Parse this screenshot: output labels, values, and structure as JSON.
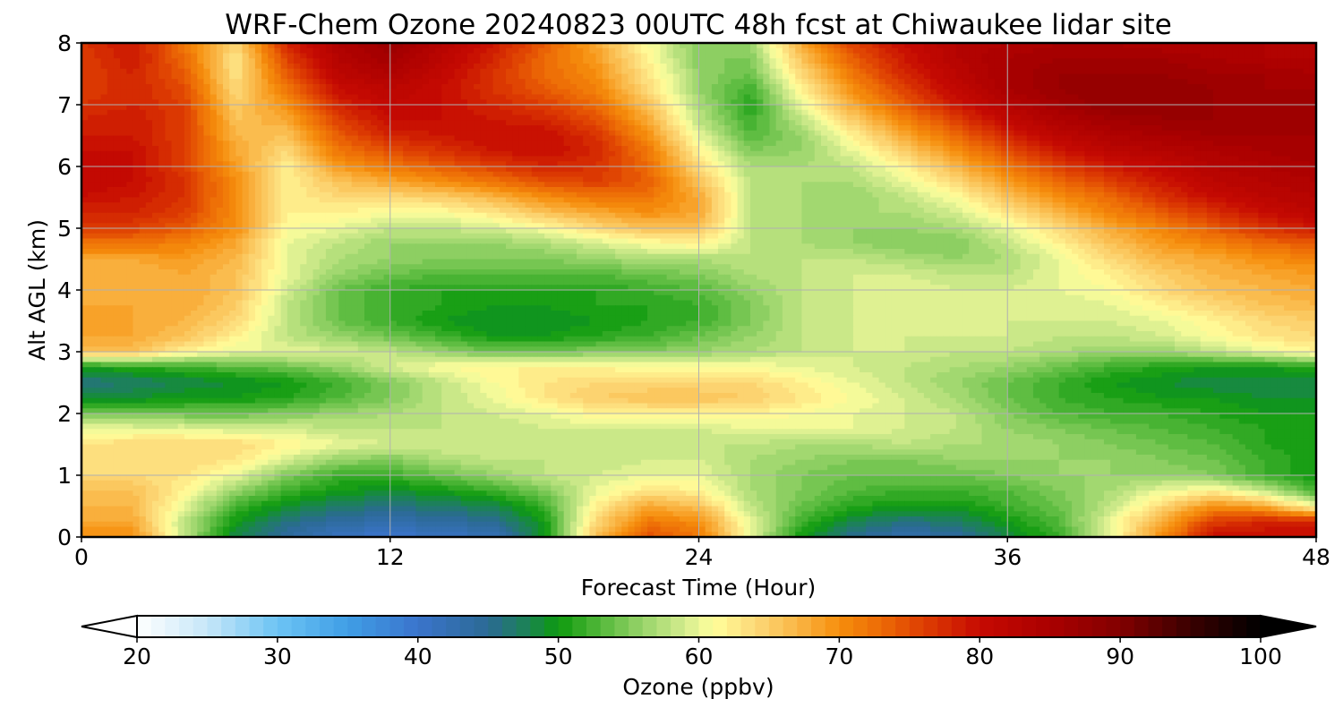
{
  "chart_data": {
    "type": "heatmap",
    "title": "WRF-Chem Ozone  20240823 00UTC 48h fcst at Chiwaukee lidar site",
    "xlabel": "Forecast Time (Hour)",
    "ylabel": "Alt AGL (km)",
    "xlim": [
      0,
      48
    ],
    "ylim": [
      0,
      8
    ],
    "x_ticks": [
      0,
      12,
      24,
      36,
      48
    ],
    "y_ticks": [
      0,
      1,
      2,
      3,
      4,
      5,
      6,
      7,
      8
    ],
    "grid": true,
    "x": [
      0,
      2,
      4,
      6,
      8,
      10,
      12,
      14,
      16,
      18,
      20,
      22,
      24,
      26,
      28,
      30,
      32,
      34,
      36,
      38,
      40,
      42,
      44,
      46,
      48
    ],
    "y": [
      0,
      0.25,
      0.5,
      0.75,
      1.0,
      1.25,
      1.5,
      1.75,
      2.0,
      2.25,
      2.5,
      2.75,
      3.0,
      3.25,
      3.5,
      3.75,
      4.0,
      4.25,
      4.5,
      4.75,
      5.0,
      5.25,
      5.5,
      5.75,
      6.0,
      6.25,
      6.5,
      6.75,
      7.0,
      7.25,
      7.5,
      7.75,
      8.0
    ],
    "z": [
      [
        70,
        70,
        58,
        48,
        44,
        41,
        40,
        41,
        42,
        50,
        66,
        75,
        72,
        60,
        50,
        45,
        43,
        44,
        48,
        52,
        60,
        70,
        80,
        80,
        80
      ],
      [
        68,
        68,
        58,
        50,
        46,
        44,
        43,
        44,
        45,
        50,
        64,
        72,
        70,
        60,
        52,
        48,
        46,
        47,
        50,
        53,
        60,
        68,
        76,
        78,
        78
      ],
      [
        67,
        67,
        60,
        52,
        49,
        47,
        46,
        47,
        48,
        52,
        62,
        68,
        66,
        58,
        54,
        51,
        50,
        50,
        52,
        54,
        58,
        64,
        70,
        68,
        60
      ],
      [
        66,
        66,
        62,
        56,
        52,
        50,
        49,
        50,
        52,
        55,
        60,
        63,
        62,
        57,
        55,
        53,
        52,
        52,
        53,
        55,
        57,
        60,
        62,
        58,
        52
      ],
      [
        64,
        64,
        63,
        60,
        55,
        52,
        52,
        54,
        56,
        58,
        59,
        60,
        60,
        57,
        55,
        54,
        54,
        54,
        55,
        56,
        56,
        56,
        55,
        52,
        50
      ],
      [
        63,
        63,
        64,
        63,
        59,
        56,
        55,
        57,
        58,
        58,
        58,
        59,
        59,
        57,
        56,
        55,
        55,
        56,
        56,
        56,
        56,
        55,
        54,
        52,
        50
      ],
      [
        63,
        64,
        64,
        64,
        62,
        60,
        59,
        59,
        59,
        59,
        58,
        58,
        58,
        58,
        57,
        57,
        58,
        57,
        57,
        56,
        55,
        54,
        53,
        51,
        50
      ],
      [
        60,
        60,
        60,
        59,
        59,
        58,
        58,
        58,
        58,
        59,
        59,
        59,
        59,
        60,
        60,
        60,
        59,
        58,
        56,
        55,
        54,
        53,
        52,
        51,
        50
      ],
      [
        55,
        54,
        54,
        54,
        55,
        56,
        57,
        58,
        59,
        60,
        62,
        62,
        62,
        62,
        61,
        60,
        59,
        58,
        55,
        53,
        52,
        52,
        51,
        50,
        50
      ],
      [
        49,
        49,
        50,
        50,
        51,
        53,
        55,
        58,
        60,
        63,
        65,
        66,
        66,
        65,
        63,
        61,
        59,
        57,
        54,
        52,
        51,
        50,
        50,
        49,
        49
      ],
      [
        46,
        47,
        48,
        49,
        50,
        52,
        55,
        58,
        61,
        63,
        64,
        64,
        64,
        64,
        62,
        60,
        58,
        56,
        54,
        52,
        50,
        49,
        48,
        48,
        48
      ],
      [
        50,
        51,
        52,
        53,
        54,
        56,
        59,
        61,
        62,
        62,
        62,
        61,
        61,
        61,
        60,
        59,
        58,
        57,
        56,
        54,
        52,
        51,
        50,
        50,
        51
      ],
      [
        66,
        66,
        62,
        60,
        60,
        59,
        58,
        56,
        54,
        54,
        55,
        55,
        56,
        57,
        58,
        59,
        59,
        58,
        58,
        57,
        56,
        56,
        58,
        60,
        62
      ],
      [
        68,
        68,
        66,
        62,
        58,
        56,
        54,
        52,
        50,
        50,
        51,
        52,
        54,
        56,
        58,
        59,
        59,
        59,
        59,
        58,
        58,
        59,
        61,
        63,
        64
      ],
      [
        68,
        68,
        67,
        64,
        58,
        54,
        52,
        50,
        49,
        49,
        50,
        51,
        52,
        55,
        58,
        59,
        59,
        59,
        59,
        59,
        59,
        60,
        62,
        64,
        65
      ],
      [
        68,
        68,
        68,
        65,
        58,
        54,
        52,
        51,
        50,
        50,
        51,
        51,
        52,
        55,
        58,
        59,
        59,
        59,
        59,
        59,
        60,
        62,
        64,
        66,
        67
      ],
      [
        67,
        67,
        68,
        66,
        59,
        54,
        52,
        51,
        51,
        51,
        51,
        52,
        53,
        56,
        58,
        59,
        60,
        59,
        59,
        60,
        61,
        64,
        66,
        67,
        68
      ],
      [
        67,
        67,
        68,
        66,
        60,
        56,
        54,
        53,
        53,
        53,
        53,
        54,
        55,
        57,
        58,
        59,
        59,
        58,
        58,
        60,
        62,
        65,
        67,
        68,
        69
      ],
      [
        68,
        68,
        69,
        67,
        60,
        57,
        56,
        55,
        55,
        55,
        56,
        57,
        57,
        58,
        58,
        58,
        57,
        56,
        57,
        60,
        64,
        67,
        68,
        70,
        71
      ],
      [
        72,
        72,
        71,
        68,
        60,
        58,
        56,
        56,
        56,
        57,
        59,
        61,
        62,
        58,
        57,
        56,
        55,
        55,
        58,
        62,
        66,
        69,
        71,
        73,
        74
      ],
      [
        76,
        76,
        74,
        70,
        61,
        60,
        58,
        58,
        59,
        61,
        64,
        66,
        66,
        58,
        57,
        56,
        56,
        57,
        60,
        64,
        68,
        71,
        74,
        77,
        79
      ],
      [
        78,
        78,
        76,
        70,
        62,
        62,
        61,
        61,
        63,
        66,
        68,
        70,
        68,
        58,
        57,
        57,
        57,
        59,
        63,
        67,
        71,
        74,
        77,
        80,
        82
      ],
      [
        80,
        79,
        77,
        70,
        62,
        64,
        64,
        65,
        67,
        70,
        72,
        72,
        68,
        58,
        57,
        56,
        58,
        61,
        66,
        70,
        73,
        77,
        80,
        82,
        83
      ],
      [
        81,
        80,
        77,
        70,
        62,
        66,
        68,
        70,
        72,
        75,
        76,
        74,
        66,
        58,
        57,
        57,
        60,
        64,
        69,
        73,
        76,
        79,
        82,
        83,
        84
      ],
      [
        81,
        80,
        76,
        69,
        62,
        69,
        72,
        74,
        76,
        78,
        77,
        73,
        64,
        57,
        57,
        58,
        62,
        67,
        72,
        76,
        79,
        81,
        83,
        84,
        85
      ],
      [
        80,
        80,
        76,
        68,
        64,
        72,
        75,
        77,
        79,
        80,
        78,
        72,
        62,
        55,
        56,
        60,
        65,
        70,
        75,
        79,
        82,
        83,
        84,
        85,
        86
      ],
      [
        79,
        79,
        76,
        67,
        66,
        74,
        78,
        79,
        80,
        80,
        77,
        70,
        60,
        53,
        56,
        62,
        68,
        73,
        78,
        82,
        84,
        85,
        86,
        86,
        86
      ],
      [
        78,
        79,
        76,
        66,
        68,
        76,
        80,
        80,
        79,
        78,
        75,
        68,
        58,
        52,
        58,
        65,
        71,
        76,
        81,
        84,
        86,
        87,
        87,
        86,
        86
      ],
      [
        77,
        78,
        76,
        65,
        70,
        78,
        81,
        80,
        78,
        76,
        73,
        66,
        57,
        51,
        60,
        68,
        74,
        79,
        83,
        86,
        88,
        87,
        87,
        86,
        86
      ],
      [
        76,
        78,
        75,
        64,
        72,
        80,
        82,
        80,
        77,
        74,
        71,
        64,
        56,
        52,
        62,
        70,
        76,
        81,
        85,
        87,
        88,
        88,
        87,
        86,
        86
      ],
      [
        76,
        78,
        74,
        63,
        74,
        82,
        84,
        81,
        77,
        73,
        70,
        63,
        56,
        54,
        64,
        72,
        78,
        82,
        85,
        87,
        87,
        87,
        86,
        86,
        85
      ],
      [
        76,
        79,
        73,
        63,
        76,
        83,
        86,
        82,
        78,
        73,
        69,
        62,
        55,
        55,
        66,
        74,
        79,
        83,
        85,
        86,
        86,
        86,
        85,
        84,
        84
      ],
      [
        77,
        79,
        72,
        64,
        78,
        84,
        87,
        83,
        79,
        74,
        68,
        61,
        55,
        56,
        68,
        76,
        80,
        83,
        84,
        85,
        85,
        84,
        84,
        84,
        83
      ]
    ],
    "colorbar": {
      "label": "Ozone  (ppbv)",
      "min": 20,
      "max": 100,
      "ticks": [
        20,
        30,
        40,
        50,
        60,
        70,
        80,
        90,
        100
      ],
      "extend": "both",
      "colors": [
        {
          "v": 20,
          "c": "#ffffff"
        },
        {
          "v": 25,
          "c": "#c6e6f8"
        },
        {
          "v": 30,
          "c": "#6cc4f4"
        },
        {
          "v": 35,
          "c": "#3f9ee6"
        },
        {
          "v": 40,
          "c": "#3a74cc"
        },
        {
          "v": 45,
          "c": "#2b6a94"
        },
        {
          "v": 48,
          "c": "#1a8450"
        },
        {
          "v": 50,
          "c": "#0d9a0d"
        },
        {
          "v": 53,
          "c": "#54b83a"
        },
        {
          "v": 56,
          "c": "#98d46a"
        },
        {
          "v": 59,
          "c": "#d4ec8e"
        },
        {
          "v": 61,
          "c": "#ffff9c"
        },
        {
          "v": 64,
          "c": "#fcd978"
        },
        {
          "v": 67,
          "c": "#f9b646"
        },
        {
          "v": 70,
          "c": "#f68e0c"
        },
        {
          "v": 73,
          "c": "#ec6a06"
        },
        {
          "v": 76,
          "c": "#de3e02"
        },
        {
          "v": 80,
          "c": "#c60a02"
        },
        {
          "v": 85,
          "c": "#aa0000"
        },
        {
          "v": 90,
          "c": "#820000"
        },
        {
          "v": 95,
          "c": "#3a0000"
        },
        {
          "v": 100,
          "c": "#000000"
        }
      ]
    }
  }
}
